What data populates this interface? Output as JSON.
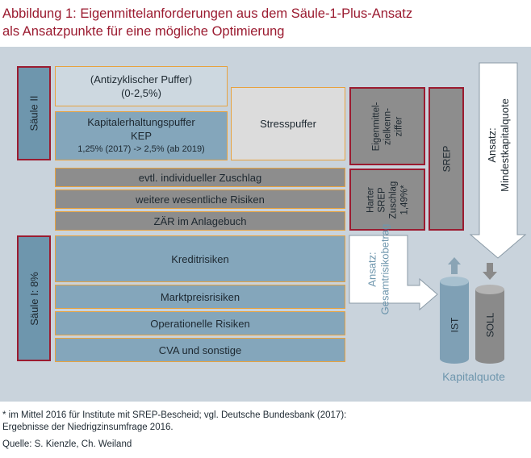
{
  "title": {
    "line1": "Abbildung 1: Eigenmittelanforderungen aus dem Säule-1-Plus-Ansatz",
    "line2": "als Ansatzpunkte für eine mögliche Optimierung"
  },
  "pillars": {
    "saeule_ii": "Säule II",
    "saeule_i": "Säule I: 8%"
  },
  "boxes": {
    "antizyklisch_line1": "(Antizyklischer Puffer)",
    "antizyklisch_line2": "(0-2,5%)",
    "kep_line1": "Kapitalerhaltungspuffer",
    "kep_line2": "KEP",
    "kep_line3": "1,25% (2017) -> 2,5% (ab 2019)",
    "stresspuffer": "Stresspuffer",
    "zuschlag": "evtl. individueller Zuschlag",
    "risiken": "weitere wesentliche Risiken",
    "zaer": "ZÄR im Anlagebuch",
    "kreditrisiken": "Kreditrisiken",
    "marktpreis": "Marktpreisrisiken",
    "operationelle": "Operationelle Risiken",
    "cva": "CVA und sonstige"
  },
  "right": {
    "eigen_line1": "Eigenmittel-",
    "eigen_line2": "zielkenn-",
    "eigen_line3": "ziffer",
    "harter_line1": "Harter",
    "harter_line2": "SREP",
    "harter_line3": "Zuschlag",
    "harter_line4": "1,49%*",
    "srep": "SREP",
    "ansatz_mind_line1": "Ansatz:",
    "ansatz_mind_line2": "Mindestkapitalquote",
    "ansatz_gesamt_line1": "Ansatz:",
    "ansatz_gesamt_line2": "Gesamtrisikobetrag",
    "ist": "IST",
    "soll": "SOLL",
    "kapitalquote": "Kapitalquote"
  },
  "colors": {
    "title": "#9b1b30",
    "panel": "#c9d3dc",
    "pillar_blue": "#6e96ad",
    "pillar_border": "#9b1b30",
    "light_box": "#cdd8e0",
    "dark_blue_box": "#84a6bb",
    "grey_box": "#8d8d8d",
    "stress_grey": "#dcdcdc",
    "cylinder": "#7fa0b5",
    "cylinder_grey": "#8a8a8a"
  },
  "footer": {
    "note_line1": "* im Mittel 2016 für Institute mit SREP-Bescheid; vgl. Deutsche Bundesbank (2017):",
    "note_line2": "Ergebnisse der Niedrigzinsumfrage 2016.",
    "source": "Quelle: S. Kienzle, Ch. Weiland"
  }
}
